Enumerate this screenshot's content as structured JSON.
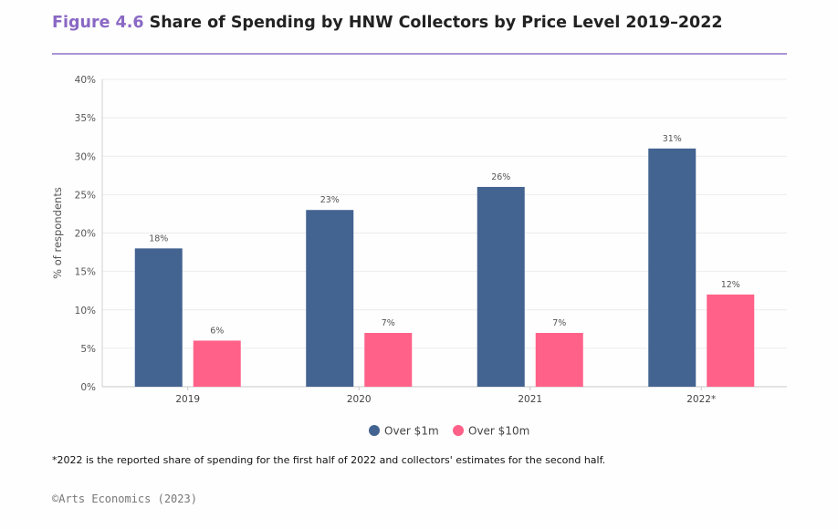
{
  "header": {
    "figure_label": "Figure 4.6",
    "title": "Share of Spending by HNW Collectors by Price Level 2019–2022"
  },
  "chart_data": {
    "type": "bar",
    "title": "Share of Spending by HNW Collectors by Price Level 2019–2022",
    "categories": [
      "2019",
      "2020",
      "2021",
      "2022*"
    ],
    "series": [
      {
        "name": "Over $1m",
        "color": "#436391",
        "values": [
          18,
          23,
          26,
          31
        ]
      },
      {
        "name": "Over $10m",
        "color": "#ff6188",
        "values": [
          6,
          7,
          7,
          12
        ]
      }
    ],
    "data_labels": [
      [
        "18%",
        "23%",
        "26%",
        "31%"
      ],
      [
        "6%",
        "7%",
        "7%",
        "12%"
      ]
    ],
    "ylabel": "% of respondents",
    "xlabel": "",
    "ylim": [
      0,
      40
    ],
    "yticks": [
      0,
      5,
      10,
      15,
      20,
      25,
      30,
      35,
      40
    ],
    "ytick_labels": [
      "0%",
      "5%",
      "10%",
      "15%",
      "20%",
      "25%",
      "30%",
      "35%",
      "40%"
    ],
    "grid": true,
    "legend_position": "bottom-center"
  },
  "footnote": "*2022 is the reported share  of spending for the first half of 2022 and collectors' estimates  for the second half.",
  "source": "©Arts Economics (2023)"
}
